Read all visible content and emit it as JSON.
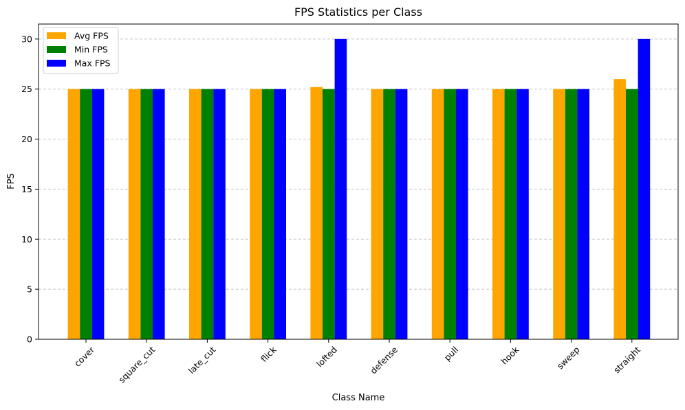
{
  "chart_data": {
    "type": "bar",
    "title": "FPS Statistics per Class",
    "xlabel": "Class Name",
    "ylabel": "FPS",
    "categories": [
      "cover",
      "square_cut",
      "late_cut",
      "flick",
      "lofted",
      "defense",
      "pull",
      "hook",
      "sweep",
      "straight"
    ],
    "series": [
      {
        "name": "Avg FPS",
        "color": "#ffa500",
        "values": [
          25,
          25,
          25,
          25,
          25.2,
          25,
          25,
          25,
          25,
          26
        ]
      },
      {
        "name": "Min FPS",
        "color": "#008000",
        "values": [
          25,
          25,
          25,
          25,
          25,
          25,
          25,
          25,
          25,
          25
        ]
      },
      {
        "name": "Max FPS",
        "color": "#0000ff",
        "values": [
          25,
          25,
          25,
          25,
          30,
          25,
          25,
          25,
          25,
          30
        ]
      }
    ],
    "ylim": [
      0,
      31.5
    ],
    "yticks": [
      0,
      5,
      10,
      15,
      20,
      25,
      30
    ],
    "grid": "y-dashed",
    "legend_position": "top-left"
  }
}
